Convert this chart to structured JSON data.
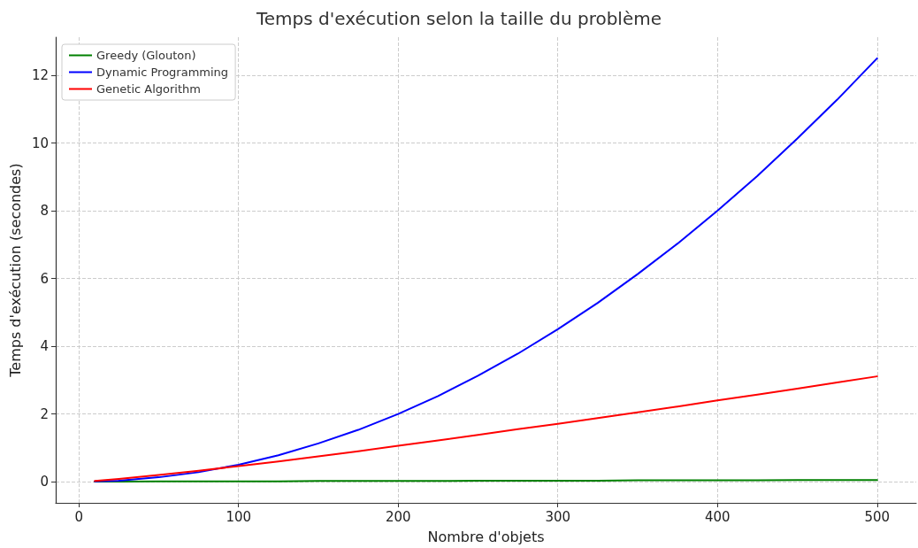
{
  "chart_data": {
    "type": "line",
    "title": "Temps d'exécution selon la taille du problème",
    "xlabel": "Nombre d'objets",
    "ylabel": "Temps d'exécution (secondes)",
    "x": [
      10,
      25,
      50,
      75,
      100,
      125,
      150,
      175,
      200,
      225,
      250,
      275,
      300,
      325,
      350,
      375,
      400,
      425,
      450,
      475,
      500
    ],
    "series": [
      {
        "name": "Greedy (Glouton)",
        "color": "#008000",
        "values": [
          0,
          0,
          0.01,
          0.01,
          0.01,
          0.01,
          0.02,
          0.02,
          0.02,
          0.02,
          0.03,
          0.03,
          0.03,
          0.03,
          0.04,
          0.04,
          0.04,
          0.04,
          0.05,
          0.05,
          0.05
        ]
      },
      {
        "name": "Dynamic Programming",
        "color": "#0000ff",
        "values": [
          0.01,
          0.03,
          0.13,
          0.28,
          0.5,
          0.78,
          1.13,
          1.53,
          2,
          2.53,
          3.13,
          3.78,
          4.5,
          5.28,
          6.13,
          7.03,
          8,
          9.03,
          10.13,
          11.28,
          12.5
        ]
      },
      {
        "name": "Genetic Algorithm",
        "color": "#ff0000",
        "values": [
          0.02,
          0.08,
          0.2,
          0.32,
          0.46,
          0.6,
          0.75,
          0.9,
          1.06,
          1.22,
          1.38,
          1.55,
          1.71,
          1.88,
          2.05,
          2.22,
          2.4,
          2.57,
          2.75,
          2.93,
          3.11
        ]
      }
    ],
    "xlim": [
      -14.5,
      524.5
    ],
    "xticks": [
      0,
      100,
      200,
      300,
      400,
      500
    ],
    "ylim": [
      -0.625,
      13.125
    ],
    "yticks": [
      0,
      2,
      4,
      6,
      8,
      10,
      12
    ],
    "grid": true,
    "legend": "top left",
    "marker": "none",
    "line_style": "solid"
  }
}
